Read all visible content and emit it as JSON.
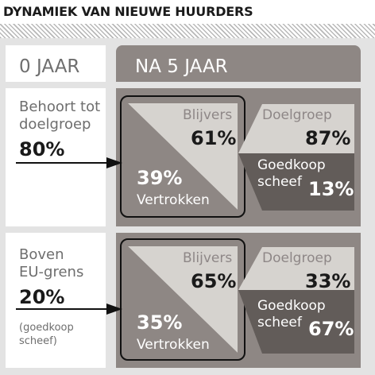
{
  "title": "DYNAMIEK VAN NIEUWE HUURDERS",
  "header": {
    "left_label": "0 JAAR",
    "right_label": "NA 5 JAAR"
  },
  "rows": [
    {
      "left_line1": "Behoort tot",
      "left_line2": "doelgroep",
      "left_pct": "80%",
      "note_line1": "",
      "note_line2": "",
      "stay_label": "Blijvers",
      "stay_pct": "61%",
      "leave_pct": "39%",
      "leave_label": "Vertrokken",
      "target_label": "Doelgroep",
      "target_pct": "87%",
      "cheap_line1": "Goedkoop",
      "cheap_line2": "scheef",
      "cheap_pct": "13%"
    },
    {
      "left_line1": "Boven",
      "left_line2": "EU-grens",
      "left_pct": "20%",
      "note_line1": "(goedkoop",
      "note_line2": "scheef)",
      "stay_label": "Blijvers",
      "stay_pct": "65%",
      "leave_pct": "35%",
      "leave_label": "Vertrokken",
      "target_label": "Doelgroep",
      "target_pct": "33%",
      "cheap_line1": "Goedkoop",
      "cheap_line2": "scheef",
      "cheap_pct": "67%"
    }
  ],
  "colors": {
    "panel_dark": "#8e8784",
    "panel_light": "#d6d3cf",
    "panel_darker": "#625c59",
    "background": "#e3e3e3"
  }
}
